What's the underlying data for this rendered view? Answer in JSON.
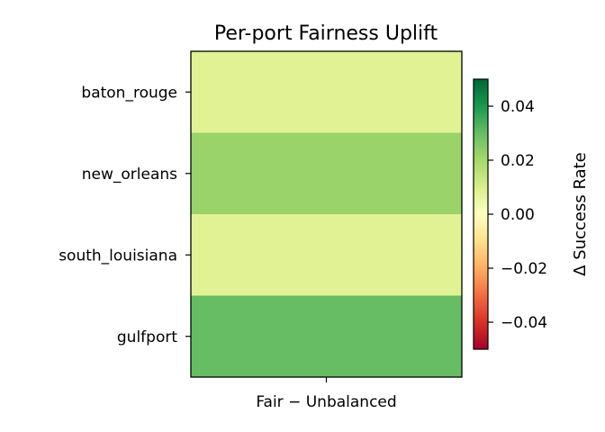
{
  "chart_data": {
    "type": "heatmap",
    "title": "Per-port Fairness Uplift",
    "x_categories": [
      "Fair − Unbalanced"
    ],
    "y_categories": [
      "baton_rouge",
      "new_orleans",
      "south_louisiana",
      "gulfport"
    ],
    "values": [
      [
        0.008
      ],
      [
        0.022
      ],
      [
        0.008
      ],
      [
        0.03
      ]
    ],
    "colormap": "RdYlGn",
    "vmin": -0.05,
    "vmax": 0.05,
    "colorbar": {
      "label": "Δ Success Rate",
      "ticks": [
        0.04,
        0.02,
        0.0,
        -0.02,
        -0.04
      ],
      "tick_labels": [
        "0.04",
        "0.02",
        "0.00",
        "−0.02",
        "−0.04"
      ]
    }
  }
}
